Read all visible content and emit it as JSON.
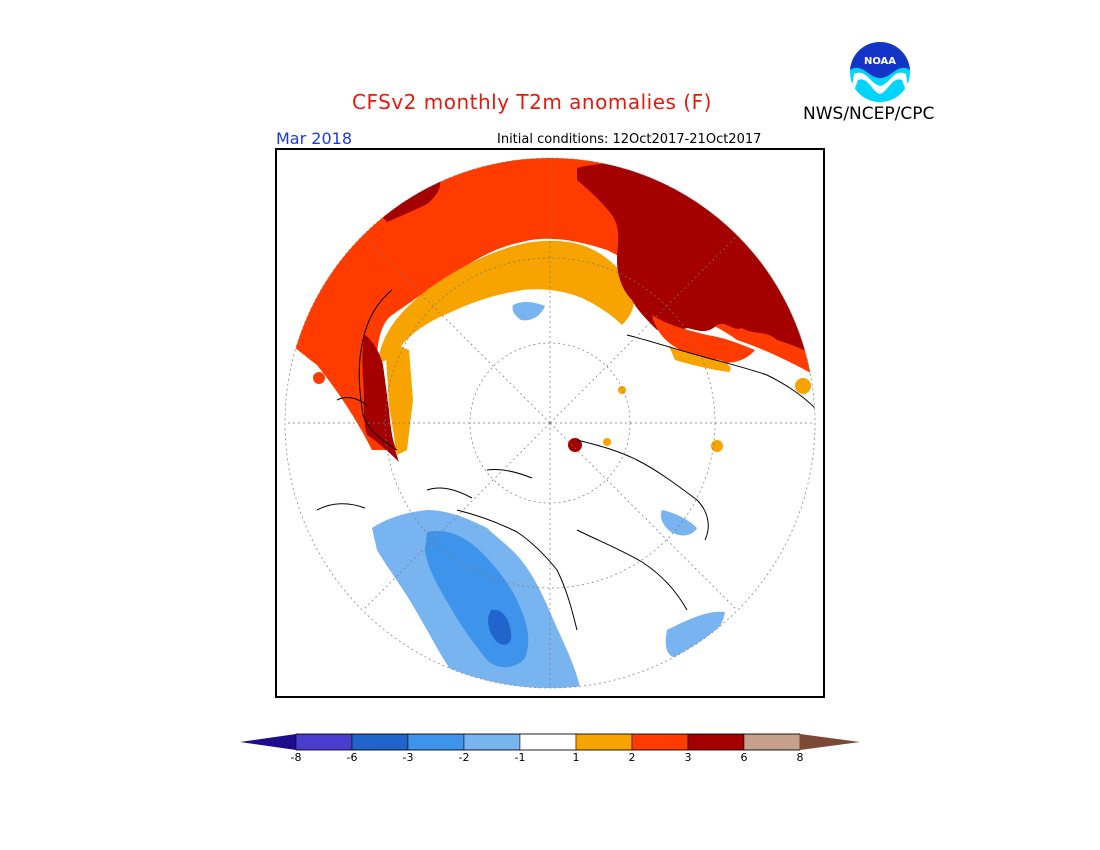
{
  "header": {
    "title": "CFSv2 monthly T2m anomalies (F)",
    "organization": "NWS/NCEP/CPC",
    "month": "Mar 2018",
    "initial_conditions": "Initial conditions: 12Oct2017-21Oct2017"
  },
  "logo": {
    "text": "NOAA",
    "icon": "noaa-logo"
  },
  "colorbar": {
    "labels": [
      "-8",
      "-6",
      "-3",
      "-2",
      "-1",
      "1",
      "2",
      "3",
      "6",
      "8"
    ],
    "colors": {
      "below_min": "#1e0c8c",
      "lt_m8_to_m6": "#4a3ccc",
      "m6_to_m3": "#2164cc",
      "m3_to_m2": "#3e94ea",
      "m2_to_m1": "#78b4f0",
      "m1_to_1": "#ffffff",
      "1_to_2": "#f7a300",
      "2_to_3": "#ff3b00",
      "3_to_6": "#a50000",
      "6_to_8": "#c7a08c",
      "above_max": "#7a4a36"
    }
  },
  "map": {
    "projection": "north-polar-stereographic",
    "regions": [
      {
        "name": "Eurasia warm anomaly",
        "category": "3 to 6"
      },
      {
        "name": "North Atlantic / Greenland warm anomaly",
        "category": "2 to 3"
      },
      {
        "name": "Canada cool anomaly",
        "category": "-3 to -1"
      },
      {
        "name": "Arctic Ocean near normal",
        "category": "-1 to 1"
      }
    ]
  }
}
